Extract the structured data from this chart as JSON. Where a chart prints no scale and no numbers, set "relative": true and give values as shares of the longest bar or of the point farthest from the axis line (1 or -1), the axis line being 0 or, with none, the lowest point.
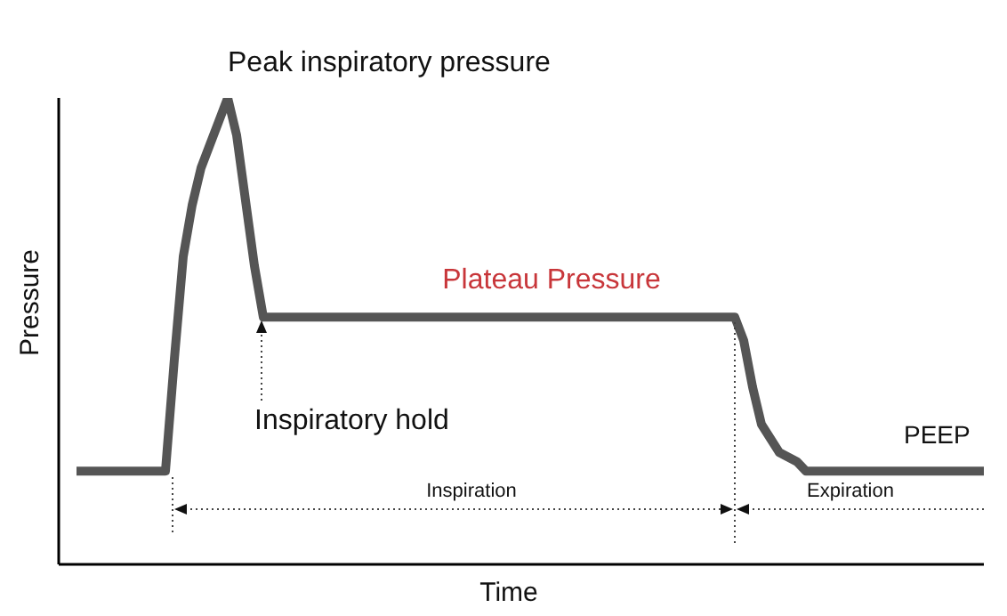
{
  "chart_data": {
    "type": "line",
    "relative": true,
    "xlabel": "Time",
    "ylabel": "Pressure",
    "categories": [
      null,
      null,
      null,
      null,
      null,
      null,
      null,
      null,
      null,
      null,
      null,
      null,
      null,
      null,
      null,
      null,
      null,
      null,
      null,
      null,
      null,
      null,
      null,
      null,
      null,
      null,
      null,
      null,
      null,
      null,
      null,
      null,
      null,
      null,
      null,
      null,
      null,
      null,
      null,
      null,
      null,
      null,
      null,
      null,
      null,
      null,
      null,
      null,
      null,
      null,
      null,
      null,
      null,
      null,
      null,
      null,
      null,
      null,
      null,
      null,
      null,
      null,
      null,
      null,
      null,
      null,
      null,
      null,
      null,
      null,
      null,
      null,
      null,
      null,
      null,
      null,
      null,
      null,
      null,
      null,
      null,
      null,
      null,
      null,
      null,
      null,
      null,
      null,
      null,
      null,
      null,
      null,
      null,
      null,
      null,
      null,
      null,
      null,
      null,
      null,
      null,
      null,
      null
    ],
    "series": [
      {
        "color": "#555555",
        "values": [
          0.2,
          0.2,
          0.2,
          0.2,
          0.2,
          0.2,
          0.2,
          0.2,
          0.2,
          0.2,
          0.2,
          0.44,
          0.66,
          0.77,
          0.85,
          0.9,
          0.95,
          1,
          0.92,
          0.78,
          0.64,
          0.53,
          0.53,
          0.53,
          0.53,
          0.53,
          0.53,
          0.53,
          0.53,
          0.53,
          0.53,
          0.53,
          0.53,
          0.53,
          0.53,
          0.53,
          0.53,
          0.53,
          0.53,
          0.53,
          0.53,
          0.53,
          0.53,
          0.53,
          0.53,
          0.53,
          0.53,
          0.53,
          0.53,
          0.53,
          0.53,
          0.53,
          0.53,
          0.53,
          0.53,
          0.53,
          0.53,
          0.53,
          0.53,
          0.53,
          0.53,
          0.53,
          0.53,
          0.53,
          0.53,
          0.53,
          0.53,
          0.53,
          0.53,
          0.53,
          0.53,
          0.53,
          0.53,
          0.53,
          0.53,
          0.48,
          0.38,
          0.3,
          0.27,
          0.24,
          0.23,
          0.22,
          0.2,
          0.2,
          0.2,
          0.2,
          0.2,
          0.2,
          0.2,
          0.2,
          0.2,
          0.2,
          0.2,
          0.2,
          0.2,
          0.2,
          0.2,
          0.2,
          0.2,
          0.2,
          0.2,
          0.2,
          0.2
        ]
      }
    ],
    "annotations": [
      "Peak inspiratory pressure",
      "Plateau Pressure",
      "Inspiratory hold",
      "Inspiration",
      "Expiration",
      "PEEP"
    ]
  }
}
